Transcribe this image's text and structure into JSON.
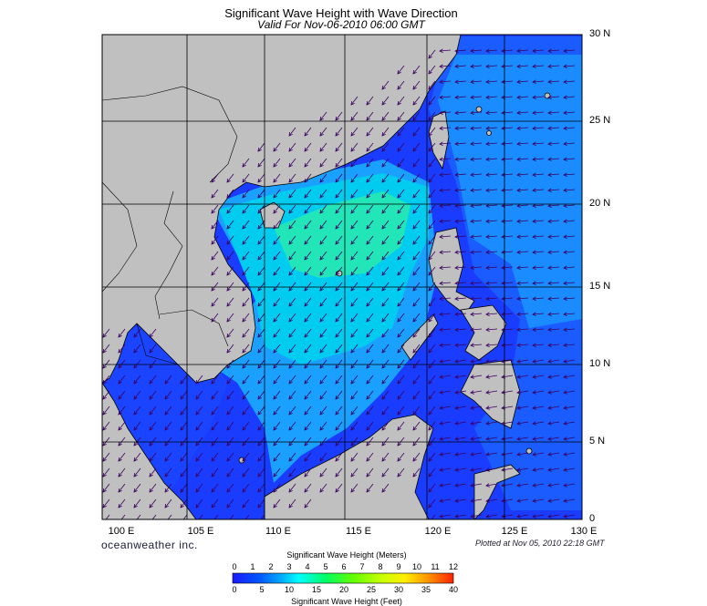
{
  "title": "Significant Wave Height with Wave Direction",
  "subtitle": "Valid For Nov-06-2010 06:00 GMT",
  "lat_labels": [
    "30 N",
    "25 N",
    "20 N",
    "15 N",
    "10 N",
    "5 N",
    "0"
  ],
  "lon_labels": [
    "100 E",
    "105 E",
    "110 E",
    "115 E",
    "120 E",
    "125 E",
    "130 E"
  ],
  "brand": "oceanweather inc.",
  "plotted": "Plotted at Nov 05, 2010 22:18 GMT",
  "colorbar": {
    "title_top": "Significant Wave Height (Meters)",
    "title_bottom": "Significant Wave Height (Feet)",
    "meters_ticks": [
      "0",
      "1",
      "2",
      "3",
      "4",
      "5",
      "6",
      "7",
      "8",
      "9",
      "10",
      "11",
      "12"
    ],
    "feet_ticks": [
      "0",
      "5",
      "10",
      "15",
      "20",
      "25",
      "30",
      "35",
      "40"
    ],
    "colors": [
      "#1a1aff",
      "#0044ff",
      "#0088ff",
      "#00ccff",
      "#00ffcc",
      "#00ff44",
      "#88ff00",
      "#ccff00",
      "#ffee00",
      "#ffaa00",
      "#ff6600",
      "#ff2200"
    ]
  },
  "colors": {
    "land": "#c0c0c0",
    "deep_blue": "#1a3cff",
    "mid_blue": "#1a6cff",
    "light_blue": "#1aa8ff",
    "cyan": "#00d8f0",
    "green": "#2ee8b0",
    "arrow": "#3a0060"
  }
}
